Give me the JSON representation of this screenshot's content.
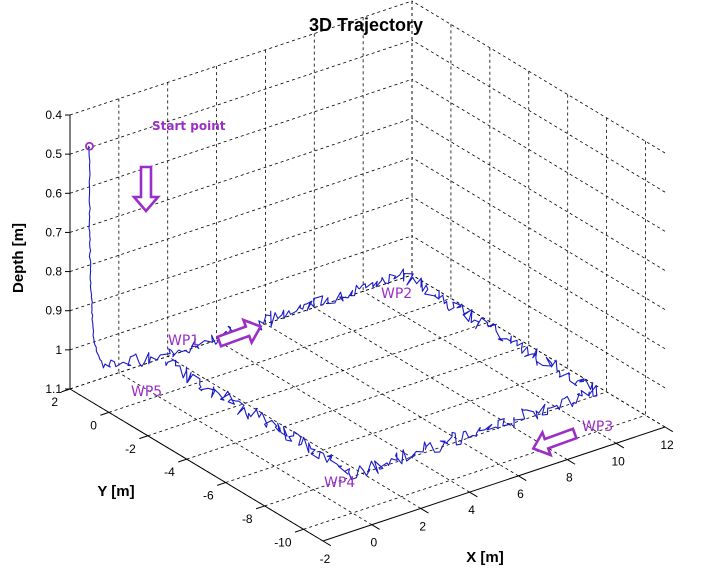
{
  "chart_data": {
    "type": "line",
    "projection": "3d",
    "title": "3D Trajectory",
    "xlabel": "X [m]",
    "ylabel": "Y [m]",
    "zlabel": "Depth [m]",
    "xlim": [
      -2,
      12
    ],
    "ylim": [
      -11,
      2
    ],
    "zlim": [
      0.4,
      1.1
    ],
    "z_reversed": true,
    "grid": true,
    "x_ticks": [
      "-2",
      "0",
      "2",
      "4",
      "6",
      "8",
      "10",
      "12"
    ],
    "y_ticks": [
      "2",
      "0",
      "-2",
      "-4",
      "-6",
      "-8",
      "-10"
    ],
    "z_ticks": [
      "0.4",
      "0.5",
      "0.6",
      "0.7",
      "0.8",
      "0.9",
      "1",
      "1.1"
    ],
    "line_color": "#1a1ac8",
    "annotation_color": "#9b2ec7",
    "series": [
      {
        "points": [
          {
            "x": -2.0,
            "y": 1.0,
            "z": 0.45
          },
          {
            "x": -2.0,
            "y": 1.0,
            "z": 0.65
          },
          {
            "x": -1.95,
            "y": 1.0,
            "z": 0.8
          },
          {
            "x": -1.9,
            "y": 0.9,
            "z": 0.95
          },
          {
            "x": -1.8,
            "y": 0.6,
            "z": 1.0
          },
          {
            "x": 0.0,
            "y": 0.0,
            "z": 1.0
          },
          {
            "x": 5.0,
            "y": 0.0,
            "z": 1.0
          },
          {
            "x": 10.0,
            "y": 0.0,
            "z": 1.0
          },
          {
            "x": 10.0,
            "y": -5.0,
            "z": 1.0
          },
          {
            "x": 10.0,
            "y": -10.0,
            "z": 1.0
          },
          {
            "x": 5.0,
            "y": -10.0,
            "z": 1.0
          },
          {
            "x": 0.0,
            "y": -10.0,
            "z": 1.0
          },
          {
            "x": 0.0,
            "y": -5.0,
            "z": 1.0
          },
          {
            "x": 0.0,
            "y": -0.4,
            "z": 1.0
          }
        ]
      }
    ],
    "annotations": {
      "start": "Start point",
      "wp1": "WP1",
      "wp2": "WP2",
      "wp3": "WP3",
      "wp4": "WP4",
      "wp5": "WP5"
    }
  }
}
